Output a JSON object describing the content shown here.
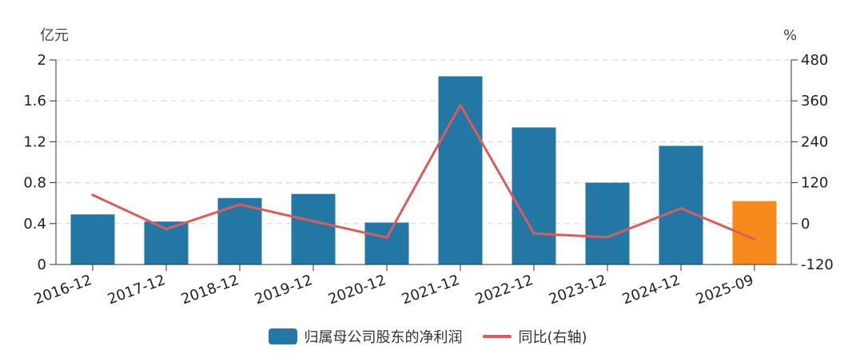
{
  "chart_data": {
    "type": "bar",
    "categories": [
      "2016-12",
      "2017-12",
      "2018-12",
      "2019-12",
      "2020-12",
      "2021-12",
      "2022-12",
      "2023-12",
      "2024-12",
      "2025-09"
    ],
    "series": [
      {
        "name": "归属母公司股东的净利润",
        "type": "bar",
        "axis": "left",
        "values": [
          0.49,
          0.42,
          0.65,
          0.69,
          0.41,
          1.84,
          1.34,
          0.8,
          1.16,
          0.62
        ],
        "color": "#2277a4",
        "highlight_color": "#f78a1a",
        "highlight_index": 9
      },
      {
        "name": "同比(右轴)",
        "type": "line",
        "axis": "right",
        "values": [
          84,
          -16,
          56,
          7,
          -41,
          348,
          -29,
          -40,
          45,
          -46
        ],
        "color": "#de5b5b"
      }
    ],
    "left_axis": {
      "unit": "亿元",
      "ylim": [
        0,
        2
      ],
      "ticks": [
        "0",
        "0.4",
        "0.8",
        "1.2",
        "1.6",
        "2"
      ]
    },
    "right_axis": {
      "unit": "%",
      "ylim": [
        -120,
        480
      ],
      "ticks": [
        "-120",
        "0",
        "120",
        "240",
        "360",
        "480"
      ]
    },
    "grid": true,
    "legend_position": "bottom"
  }
}
